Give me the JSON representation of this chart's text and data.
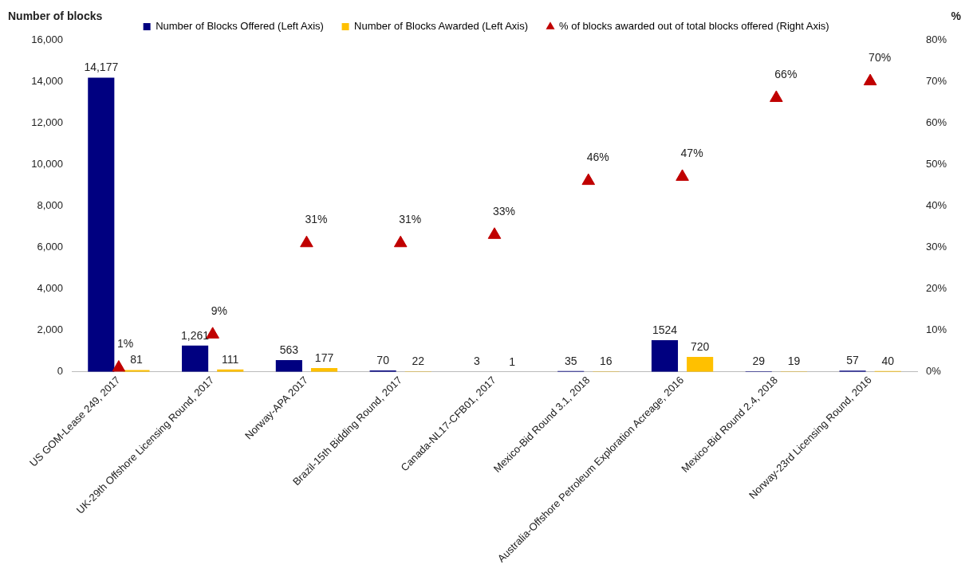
{
  "chart_data": {
    "type": "bar",
    "ylabel": "Number of blocks",
    "y2label": "%",
    "categories": [
      "US GOM-Lease 249, 2017",
      "UK-29th Offshore Licensing Round, 2017",
      "Norway-APA 2017",
      "Brazil-15th Bidding Round, 2017",
      "Canada-NL17-CFB01, 2017",
      "Mexico-Bid Round 3.1, 2018",
      "Australia-Offshore Petroleum Exploration Acreage, 2016",
      "Mexico-Bid Round 2.4, 2018",
      "Norway-23rd Licensing Round, 2016"
    ],
    "series": [
      {
        "name": "Number of Blocks Offered (Left Axis)",
        "color": "#000080",
        "values": [
          14177,
          1261,
          563,
          70,
          3,
          35,
          1524,
          29,
          57
        ],
        "value_labels": [
          "14,177",
          "1,261",
          "563",
          "70",
          "3",
          "35",
          "1524",
          "29",
          "57"
        ]
      },
      {
        "name": "Number of Blocks Awarded (Left Axis)",
        "color": "#ffc000",
        "values": [
          81,
          111,
          177,
          22,
          1,
          16,
          720,
          19,
          40
        ],
        "value_labels": [
          "81",
          "111",
          "177",
          "22",
          "1",
          "16",
          "720",
          "19",
          "40"
        ]
      },
      {
        "name": "% of blocks awarded out of total blocks offered (Right Axis)",
        "type": "scatter",
        "axis": "y2",
        "marker": "triangle",
        "color": "#c00000",
        "values": [
          1,
          9,
          31,
          31,
          33,
          46,
          47,
          66,
          70
        ],
        "value_labels": [
          "1%",
          "9%",
          "31%",
          "31%",
          "33%",
          "46%",
          "47%",
          "66%",
          "70%"
        ]
      }
    ],
    "ylim": [
      0,
      16000
    ],
    "yticks": [
      0,
      {
        "value": 2000,
        "label": "2,000"
      },
      {
        "value": 4000,
        "label": "4,000"
      },
      {
        "value": 6000,
        "label": "6,000"
      },
      {
        "value": 8000,
        "label": "8,000"
      },
      {
        "value": 10000,
        "label": "10,000"
      },
      {
        "value": 12000,
        "label": "12,000"
      },
      {
        "value": 14000,
        "label": "14,000"
      },
      {
        "value": 16000,
        "label": "16,000"
      }
    ],
    "y2lim": [
      0,
      80
    ],
    "y2ticks": [
      {
        "value": 0,
        "label": "0%"
      },
      {
        "value": 10,
        "label": "10%"
      },
      {
        "value": 20,
        "label": "20%"
      },
      {
        "value": 30,
        "label": "30%"
      },
      {
        "value": 40,
        "label": "40%"
      },
      {
        "value": 50,
        "label": "50%"
      },
      {
        "value": 60,
        "label": "60%"
      },
      {
        "value": 70,
        "label": "70%"
      },
      {
        "value": 80,
        "label": "80%"
      }
    ],
    "grid": false,
    "legend": "top"
  }
}
